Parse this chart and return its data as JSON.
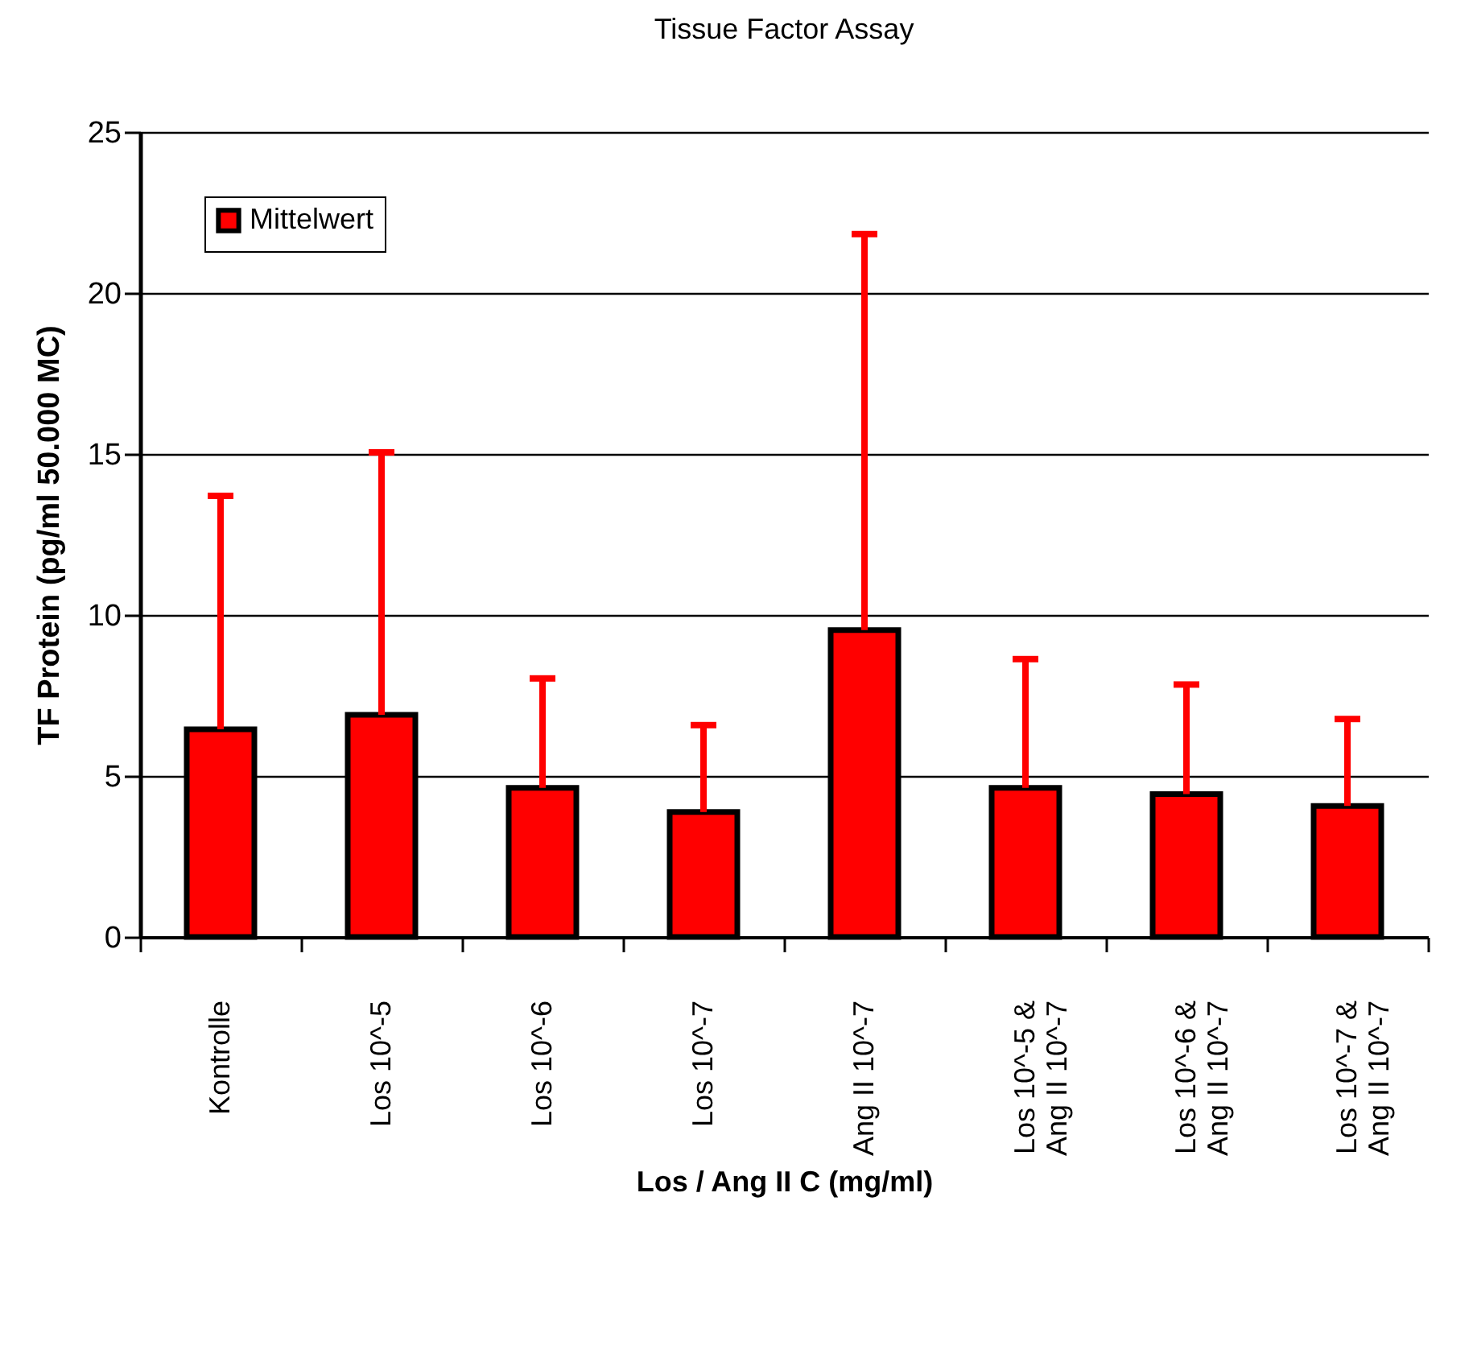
{
  "chart_data": {
    "type": "bar",
    "title": "Tissue Factor Assay",
    "xlabel": "Los / Ang II C (mg/ml)",
    "ylabel": "TF Protein (pg/ml 50.000 MC)",
    "categories": [
      "Kontrolle",
      "Los 10^-5",
      "Los 10^-6",
      "Los 10^-7",
      "Ang II 10^-7",
      "Los 10^-5 &\nAng II 10^-7",
      "Los 10^-6 &\nAng II 10^-7",
      "Los 10^-7 &\nAng II 10^-7"
    ],
    "series": [
      {
        "name": "Mittelwert",
        "color": "#ff0000",
        "values": [
          6.45,
          6.9,
          4.63,
          3.88,
          9.53,
          4.63,
          4.44,
          4.07
        ],
        "errors": [
          [
            6.45,
            13.7
          ],
          [
            6.9,
            15.05
          ],
          [
            4.63,
            8.03
          ],
          [
            3.88,
            6.58
          ],
          [
            9.53,
            21.83
          ],
          [
            4.63,
            8.63
          ],
          [
            4.44,
            7.84
          ],
          [
            4.07,
            6.77
          ]
        ]
      }
    ],
    "ylim": [
      0,
      25
    ],
    "yticks": [
      0,
      5,
      10,
      15,
      20,
      25
    ],
    "grid": "y",
    "legend": "top left"
  }
}
